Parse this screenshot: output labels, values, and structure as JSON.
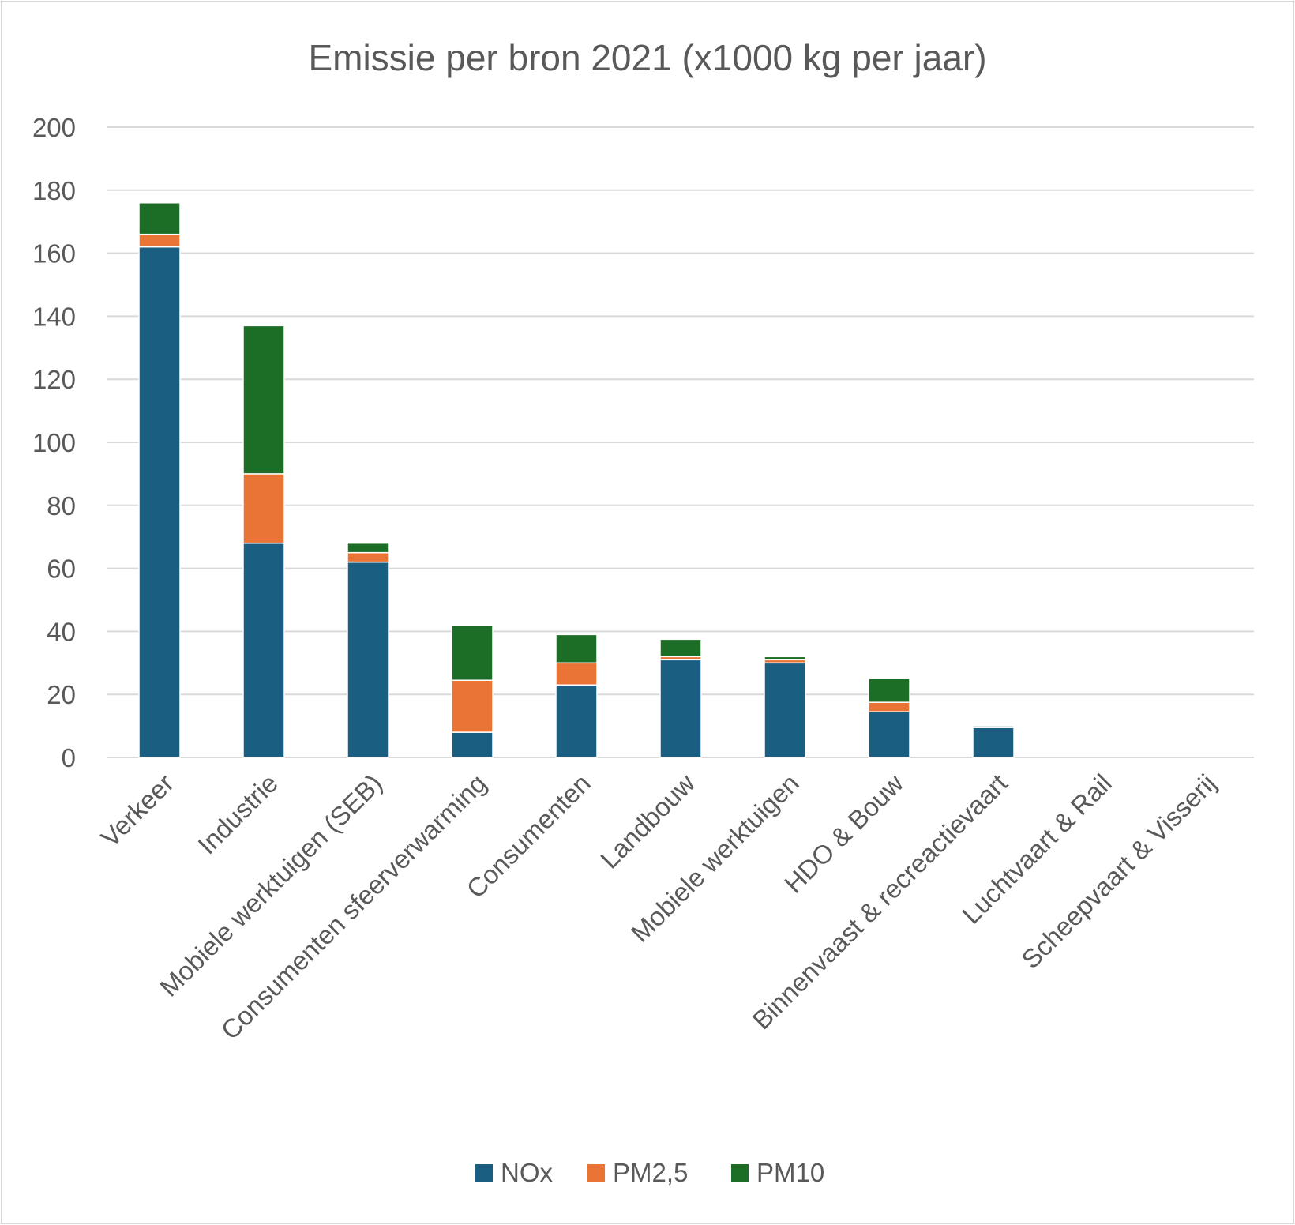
{
  "chart_data": {
    "type": "bar",
    "stacked": true,
    "title": "Emissie per bron 2021 (x1000 kg per jaar)",
    "xlabel": "",
    "ylabel": "",
    "ylim": [
      0,
      200
    ],
    "y_ticks": [
      0,
      20,
      40,
      60,
      80,
      100,
      120,
      140,
      160,
      180,
      200
    ],
    "grid": true,
    "legend_position": "bottom",
    "categories": [
      "Verkeer",
      "Industrie",
      "Mobiele werktuigen (SEB)",
      "Consumenten sfeerverwarming",
      "Consumenten",
      "Landbouw",
      "Mobiele werktuigen",
      "HDO & Bouw",
      "Binnenvaast & recreactievaart",
      "Luchtvaart & Rail",
      "Scheepvaart & Visserij"
    ],
    "series": [
      {
        "name": "NOx",
        "color": "#1a5e82",
        "values": [
          162,
          68,
          62,
          8,
          23,
          31,
          30,
          14.5,
          9.5,
          0,
          0
        ]
      },
      {
        "name": "PM2,5",
        "color": "#e97435",
        "values": [
          4,
          22,
          3,
          16.5,
          7,
          1,
          1,
          3,
          0,
          0,
          0
        ]
      },
      {
        "name": "PM10",
        "color": "#1c6d25",
        "values": [
          10,
          47,
          3,
          17.5,
          9,
          5.5,
          1,
          7.5,
          0.5,
          0,
          0
        ]
      }
    ]
  }
}
